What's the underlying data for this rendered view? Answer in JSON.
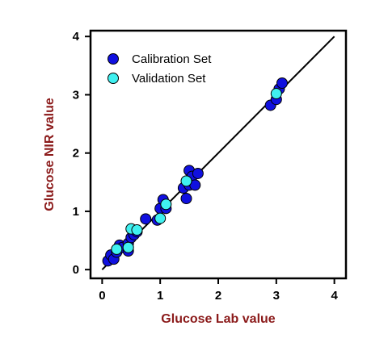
{
  "chart_data": {
    "type": "scatter",
    "xlabel": "Glucose Lab value",
    "ylabel": "Glucose NIR value",
    "xlim": [
      -0.2,
      4.2
    ],
    "ylim": [
      -0.15,
      4.1
    ],
    "xticks": [
      "0",
      "1",
      "2",
      "3",
      "4"
    ],
    "yticks": [
      "0",
      "1",
      "2",
      "3",
      "4"
    ],
    "grid": false,
    "legend_position": "top-left",
    "label_color": "#8B1A1A",
    "reference_line": {
      "from": [
        0,
        0
      ],
      "to": [
        4,
        4
      ],
      "color": "#000000"
    },
    "series": [
      {
        "name": "Calibration Set",
        "color": "#1010E0",
        "points": [
          [
            0.1,
            0.15
          ],
          [
            0.15,
            0.25
          ],
          [
            0.2,
            0.18
          ],
          [
            0.25,
            0.3
          ],
          [
            0.3,
            0.42
          ],
          [
            0.35,
            0.38
          ],
          [
            0.45,
            0.32
          ],
          [
            0.45,
            0.45
          ],
          [
            0.5,
            0.55
          ],
          [
            0.55,
            0.6
          ],
          [
            0.6,
            0.65
          ],
          [
            0.75,
            0.87
          ],
          [
            0.95,
            0.85
          ],
          [
            1.0,
            1.05
          ],
          [
            1.05,
            1.2
          ],
          [
            1.1,
            1.05
          ],
          [
            1.4,
            1.4
          ],
          [
            1.45,
            1.22
          ],
          [
            1.5,
            1.7
          ],
          [
            1.5,
            1.45
          ],
          [
            1.55,
            1.6
          ],
          [
            1.6,
            1.45
          ],
          [
            1.65,
            1.65
          ],
          [
            2.9,
            2.82
          ],
          [
            3.0,
            2.92
          ],
          [
            3.05,
            3.1
          ],
          [
            3.1,
            3.2
          ]
        ]
      },
      {
        "name": "Validation Set",
        "color": "#40F0F0",
        "points": [
          [
            0.25,
            0.35
          ],
          [
            0.45,
            0.38
          ],
          [
            0.5,
            0.7
          ],
          [
            0.6,
            0.68
          ],
          [
            1.0,
            0.88
          ],
          [
            1.1,
            1.12
          ],
          [
            1.45,
            1.52
          ],
          [
            3.0,
            3.02
          ]
        ]
      }
    ]
  }
}
